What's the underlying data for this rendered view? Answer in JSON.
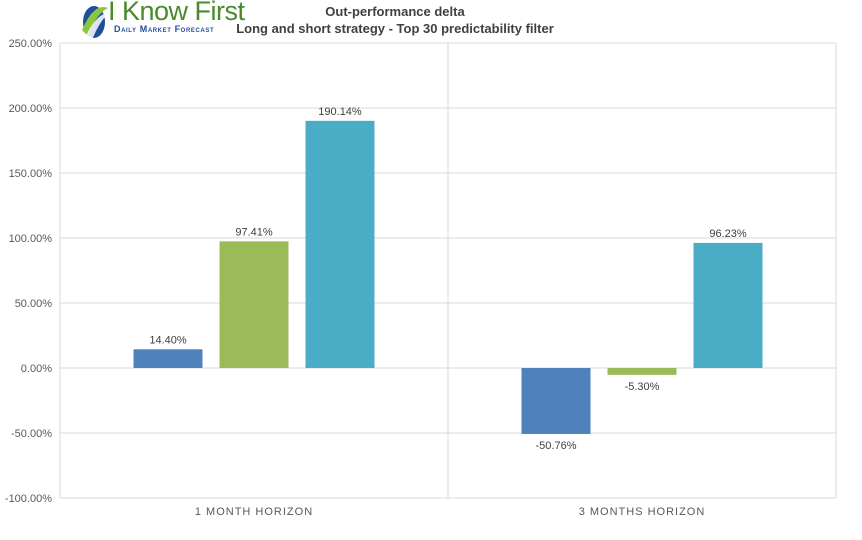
{
  "logo": {
    "brand": "I Know First",
    "tagline": "Daily Market Forecast"
  },
  "chart_data": {
    "type": "bar",
    "title": "Out-performance delta",
    "subtitle": "Long and short strategy - Top 30 predictability filter",
    "categories": [
      "1 MONTH HORIZON",
      "3 MONTHS HORIZON"
    ],
    "series": [
      {
        "values": [
          14.4,
          -50.76
        ],
        "labels": [
          "14.40%",
          "-50.76%"
        ],
        "color": "#4f81bd"
      },
      {
        "values": [
          97.41,
          -5.3
        ],
        "labels": [
          "97.41%",
          "-5.30%"
        ],
        "color": "#9bbb59"
      },
      {
        "values": [
          190.14,
          96.23
        ],
        "labels": [
          "190.14%",
          "96.23%"
        ],
        "color": "#4bacc6"
      }
    ],
    "yticks": [
      "250.00%",
      "200.00%",
      "150.00%",
      "100.00%",
      "50.00%",
      "0.00%",
      "-50.00%",
      "-100.00%"
    ],
    "ylim": [
      -100,
      250
    ],
    "grid": true,
    "xlabel": "",
    "ylabel": ""
  }
}
